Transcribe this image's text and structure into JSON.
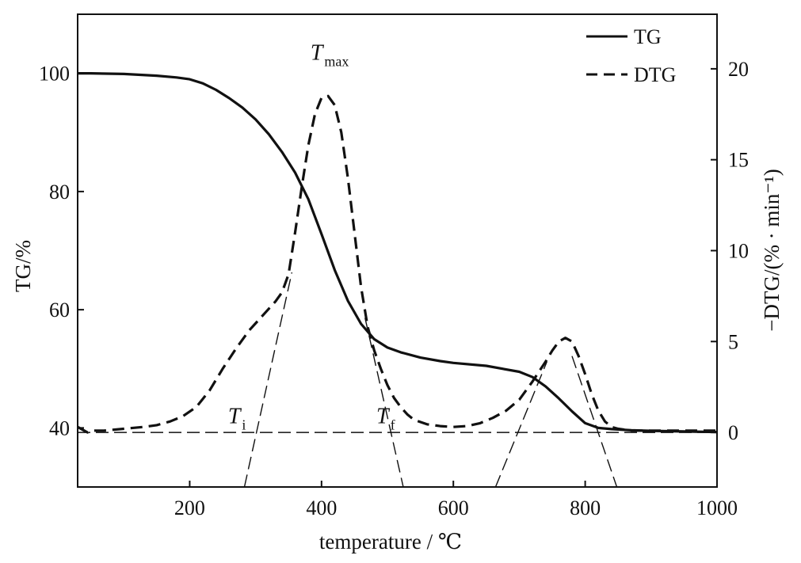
{
  "chart_data": {
    "type": "line",
    "title": "",
    "xlabel": "temperature / ℃",
    "ylabel": "TG/%",
    "y2label": "−DTG/(% · min⁻¹)",
    "xlim": [
      30,
      1000
    ],
    "ylim": [
      30,
      110
    ],
    "y2lim": [
      -3,
      23
    ],
    "x_ticks": [
      200,
      400,
      600,
      800,
      1000
    ],
    "y_ticks": [
      40,
      60,
      80,
      100
    ],
    "y2_ticks": [
      0,
      5,
      10,
      15,
      20
    ],
    "legend": {
      "placement": "top-right",
      "entries": [
        "TG",
        "DTG"
      ]
    },
    "series": [
      {
        "name": "TG",
        "axis": "left",
        "style": "solid",
        "x": [
          30,
          50,
          100,
          150,
          180,
          200,
          220,
          240,
          260,
          280,
          300,
          320,
          340,
          360,
          380,
          400,
          420,
          440,
          460,
          480,
          500,
          520,
          550,
          580,
          600,
          650,
          700,
          720,
          740,
          760,
          780,
          800,
          820,
          840,
          870,
          900,
          950,
          1000
        ],
        "values": [
          100.0,
          100.0,
          99.9,
          99.6,
          99.3,
          99.0,
          98.3,
          97.2,
          95.8,
          94.2,
          92.2,
          89.7,
          86.7,
          83.2,
          78.7,
          72.8,
          66.7,
          61.5,
          57.6,
          55.0,
          53.6,
          52.8,
          51.9,
          51.3,
          51.0,
          50.5,
          49.5,
          48.6,
          47.0,
          45.0,
          42.8,
          40.8,
          40.0,
          39.8,
          39.6,
          39.5,
          39.4,
          39.3
        ]
      },
      {
        "name": "DTG",
        "axis": "right",
        "style": "dashed",
        "x": [
          30,
          40,
          45,
          55,
          70,
          100,
          130,
          150,
          170,
          190,
          210,
          230,
          250,
          270,
          290,
          310,
          330,
          340,
          350,
          360,
          370,
          380,
          390,
          400,
          410,
          420,
          430,
          440,
          450,
          460,
          470,
          480,
          490,
          500,
          510,
          520,
          530,
          540,
          560,
          580,
          600,
          620,
          640,
          660,
          680,
          700,
          720,
          740,
          750,
          760,
          770,
          780,
          790,
          800,
          810,
          820,
          830,
          840,
          850,
          870,
          900,
          950,
          1000
        ],
        "values": [
          0.3,
          0.1,
          0.0,
          0.1,
          0.1,
          0.2,
          0.3,
          0.4,
          0.6,
          0.9,
          1.4,
          2.3,
          3.5,
          4.6,
          5.6,
          6.4,
          7.2,
          7.7,
          8.7,
          11.0,
          13.5,
          15.8,
          17.5,
          18.4,
          18.5,
          18.0,
          16.5,
          14.0,
          11.0,
          8.0,
          5.8,
          4.5,
          3.5,
          2.6,
          1.9,
          1.4,
          1.0,
          0.7,
          0.45,
          0.35,
          0.3,
          0.35,
          0.5,
          0.8,
          1.2,
          1.8,
          2.8,
          3.9,
          4.5,
          5.0,
          5.2,
          5.0,
          4.2,
          3.2,
          2.1,
          1.2,
          0.6,
          0.3,
          0.2,
          0.1,
          0.1,
          0.1,
          0.1
        ]
      }
    ],
    "annotations": [
      {
        "main": "T",
        "sub": "max",
        "x": 400,
        "y2": 20.5
      },
      {
        "main": "T",
        "sub": "i",
        "x": 275,
        "y2": 0.5
      },
      {
        "main": "T",
        "sub": "f",
        "x": 500,
        "y2": 0.5
      }
    ],
    "tangent_lines": [
      {
        "x": [
          283,
          355
        ],
        "y2": [
          -3,
          8.8
        ]
      },
      {
        "x": [
          466,
          524
        ],
        "y2": [
          6.3,
          -3
        ]
      },
      {
        "x": [
          664,
          742
        ],
        "y2": [
          -3,
          3.9
        ]
      },
      {
        "x": [
          780,
          848
        ],
        "y2": [
          4.2,
          -3
        ]
      }
    ],
    "baseline_y2": 0
  }
}
